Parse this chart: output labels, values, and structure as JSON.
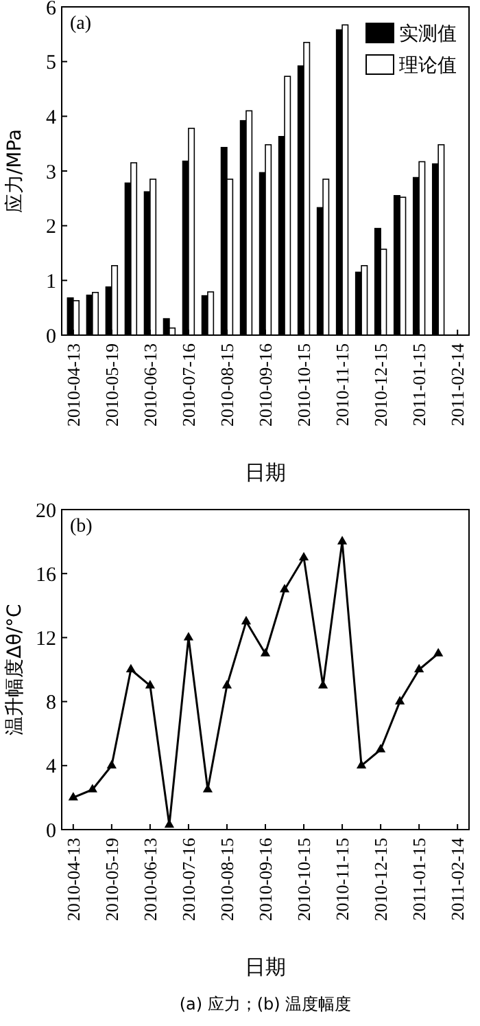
{
  "chart_data": [
    {
      "type": "bar",
      "xlabel": "日期",
      "ylabel": "应力/MPa",
      "categories": [
        "2010-04-13",
        null,
        "2010-05-19",
        null,
        "2010-06-13",
        null,
        "2010-07-16",
        null,
        "2010-08-15",
        null,
        "2010-09-16",
        null,
        "2010-10-15",
        null,
        "2010-11-15",
        null,
        "2010-12-15",
        null,
        "2011-01-15",
        null,
        "2011-02-14"
      ],
      "series": [
        {
          "name": "实测值",
          "color": "#000000",
          "values": [
            0.68,
            0.73,
            0.88,
            2.78,
            2.62,
            0.3,
            3.18,
            0.72,
            3.43,
            3.92,
            2.97,
            3.63,
            4.92,
            2.33,
            5.58,
            1.15,
            1.95,
            2.55,
            2.88,
            3.13,
            null
          ]
        },
        {
          "name": "理论值",
          "color": "#ffffff",
          "values": [
            0.63,
            0.78,
            1.27,
            3.15,
            2.85,
            0.13,
            3.78,
            0.79,
            2.85,
            4.1,
            3.48,
            4.73,
            5.35,
            2.85,
            5.67,
            1.27,
            1.57,
            2.52,
            3.17,
            3.48,
            null
          ]
        }
      ],
      "ylim": [
        0,
        6
      ],
      "yticks": [
        0,
        1,
        2,
        3,
        4,
        5,
        6
      ],
      "legend": "top right",
      "grid": false,
      "annotations": [
        "(a)"
      ]
    },
    {
      "type": "line",
      "xlabel": "日期",
      "ylabel": "温升幅度Δθ/°C",
      "categories": [
        "2010-04-13",
        null,
        "2010-05-19",
        null,
        "2010-06-13",
        null,
        "2010-07-16",
        null,
        "2010-08-15",
        null,
        "2010-09-16",
        null,
        "2010-10-15",
        null,
        "2010-11-15",
        null,
        "2010-12-15",
        null,
        "2011-01-15",
        null,
        "2011-02-14"
      ],
      "series": [
        {
          "color": "#000000",
          "values": [
            2,
            2.5,
            4,
            10,
            9,
            0.3,
            12,
            2.5,
            9,
            13,
            11,
            15,
            17,
            9,
            18,
            4,
            5,
            8,
            10,
            11,
            null
          ]
        }
      ],
      "ylim": [
        0,
        20
      ],
      "yticks": [
        0,
        4,
        8,
        12,
        16,
        20
      ],
      "marker": "triangle",
      "line_style": "solid",
      "grid": false,
      "annotations": [
        "(b)",
        "(a) 应力；(b) 温度幅度"
      ]
    }
  ]
}
